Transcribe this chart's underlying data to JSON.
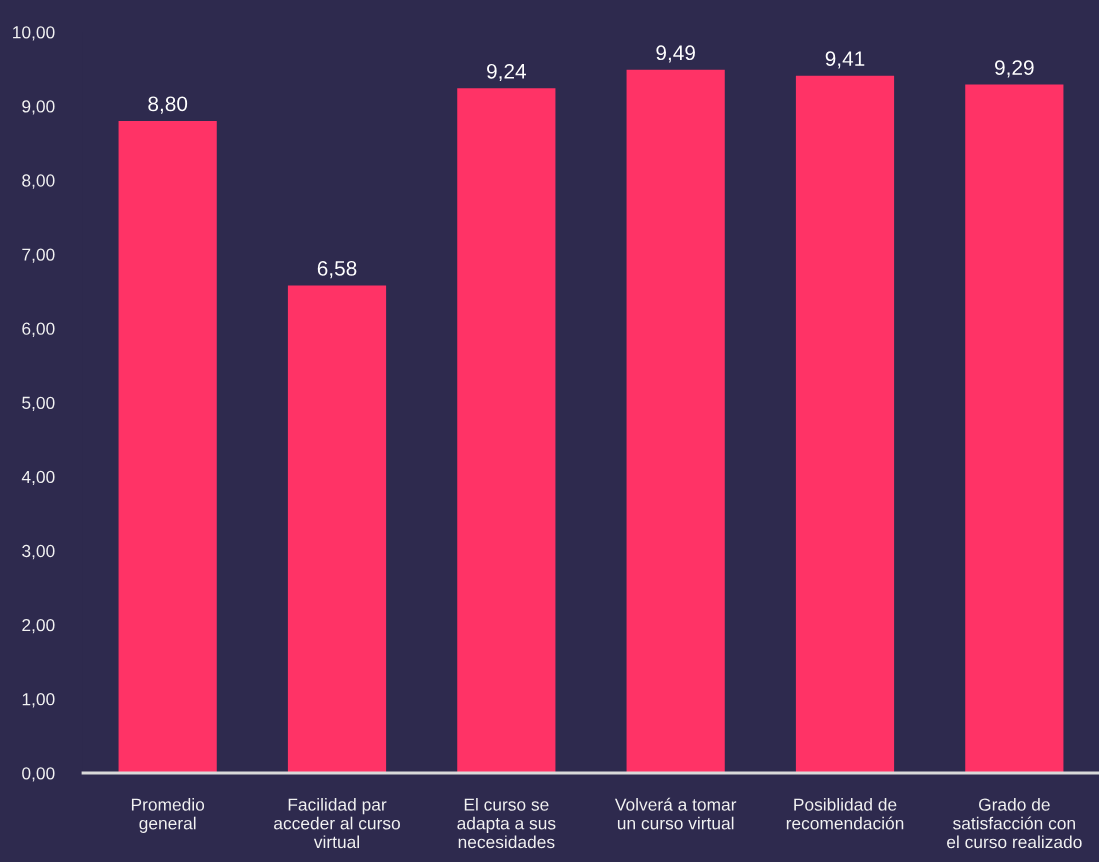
{
  "chart_data": {
    "type": "bar",
    "categories": [
      "Promedio\ngeneral",
      "Facilidad par\nacceder al curso\nvirtual",
      "El curso se\nadapta a sus\nnecesidades",
      "Volverá a tomar\nun curso virtual",
      "Posiblidad de\nrecomendación",
      "Grado de\nsatisfacción con\nel curso realizado"
    ],
    "values": [
      8.8,
      6.58,
      9.24,
      9.49,
      9.41,
      9.29
    ],
    "value_labels": [
      "8,80",
      "6,58",
      "9,24",
      "9,49",
      "9,41",
      "9,29"
    ],
    "color": "#ff3366",
    "ylim": [
      0,
      10
    ],
    "yticks": [
      {
        "value": 0,
        "label": "0,00"
      },
      {
        "value": 1,
        "label": "1,00"
      },
      {
        "value": 2,
        "label": "2,00"
      },
      {
        "value": 3,
        "label": "3,00"
      },
      {
        "value": 4,
        "label": "4,00"
      },
      {
        "value": 5,
        "label": "5,00"
      },
      {
        "value": 6,
        "label": "6,00"
      },
      {
        "value": 7,
        "label": "7,00"
      },
      {
        "value": 8,
        "label": "8,00"
      },
      {
        "value": 9,
        "label": "9,00"
      },
      {
        "value": 10,
        "label": "10,00"
      }
    ]
  }
}
